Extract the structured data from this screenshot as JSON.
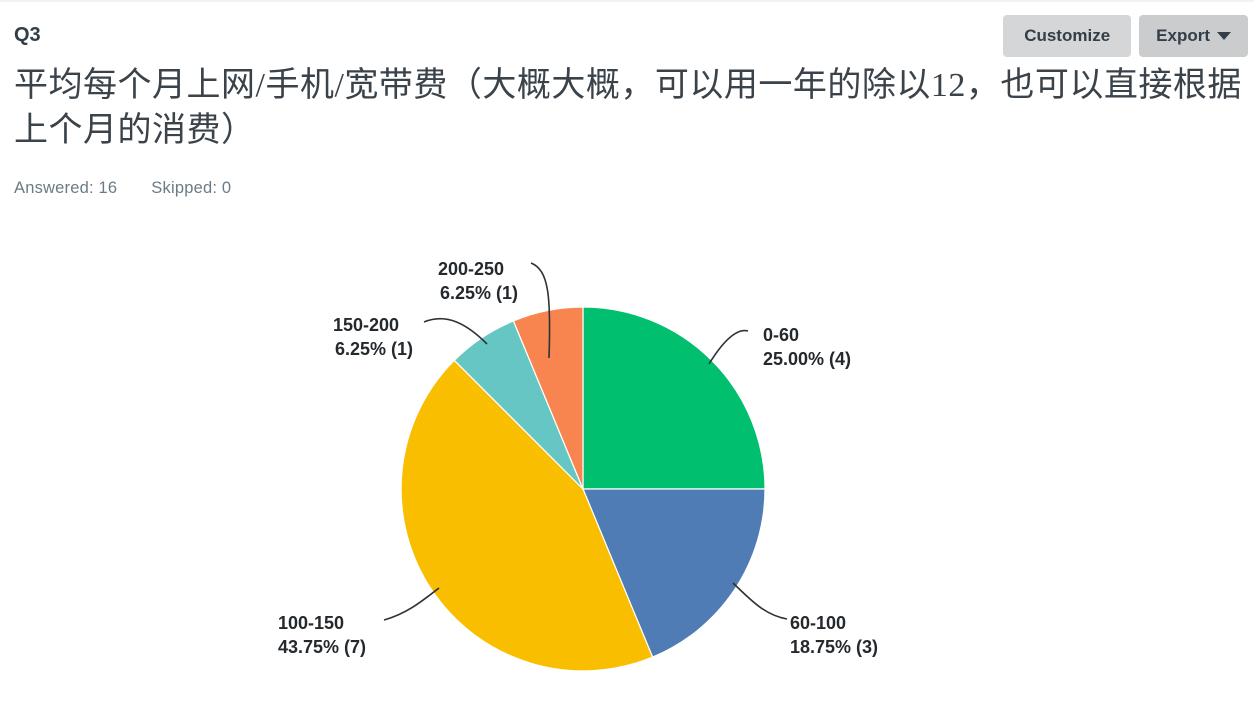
{
  "header": {
    "question_number": "Q3",
    "customize_label": "Customize",
    "export_label": "Export"
  },
  "question": {
    "title": "平均每个月上网/手机/宽带费（大概大概，可以用一年的除以12，也可以直接根据上个月的消费）",
    "answered_text": "Answered: 16",
    "skipped_text": "Skipped: 0"
  },
  "chart_data": {
    "type": "pie",
    "title": "",
    "start_angle_deg": 0,
    "direction": "clockwise",
    "total_responses": 16,
    "categories": [
      "0-60",
      "60-100",
      "100-150",
      "150-200",
      "200-250"
    ],
    "values": [
      25.0,
      18.75,
      43.75,
      6.25,
      6.25
    ],
    "counts": [
      4,
      3,
      7,
      1,
      1
    ],
    "slices": [
      {
        "label": "0-60",
        "percent": 25.0,
        "count": 4,
        "value_text": "25.00% (4)",
        "color": "#00BF6F"
      },
      {
        "label": "60-100",
        "percent": 18.75,
        "count": 3,
        "value_text": "18.75% (3)",
        "color": "#4F7CB5"
      },
      {
        "label": "100-150",
        "percent": 43.75,
        "count": 7,
        "value_text": "43.75% (7)",
        "color": "#F9BE00"
      },
      {
        "label": "150-200",
        "percent": 6.25,
        "count": 1,
        "value_text": "6.25% (1)",
        "color": "#66C6C3"
      },
      {
        "label": "200-250",
        "percent": 6.25,
        "count": 1,
        "value_text": "6.25% (1)",
        "color": "#F8854F"
      }
    ]
  }
}
